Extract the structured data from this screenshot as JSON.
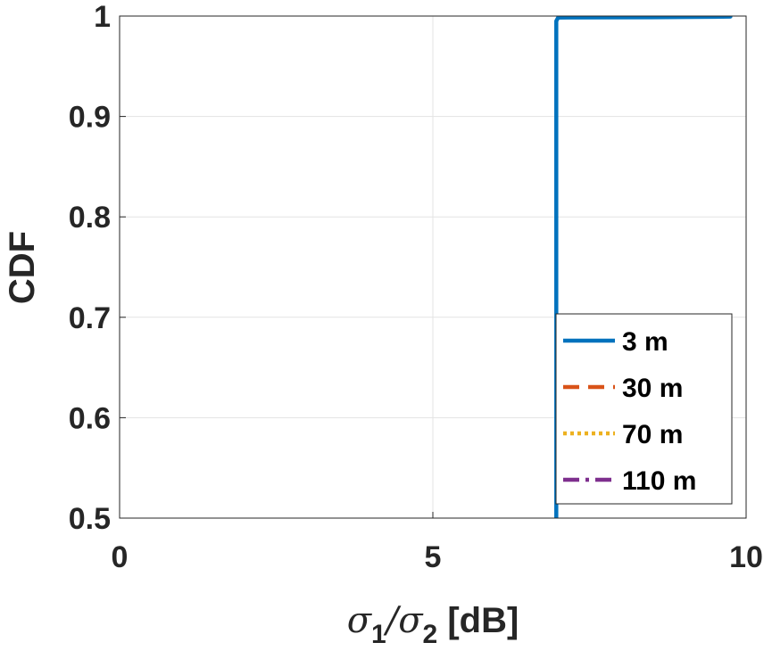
{
  "chart_data": {
    "type": "line",
    "title": "",
    "xlabel": {
      "sym1": "σ",
      "sub1": "1",
      "slash": "/",
      "sym2": "σ",
      "sub2": "2",
      "unit": " [dB]"
    },
    "ylabel": "CDF",
    "xlim": [
      0,
      10
    ],
    "ylim": [
      0.5,
      1
    ],
    "xticks": [
      0,
      5,
      10
    ],
    "yticks": [
      0.5,
      0.6,
      0.7,
      0.8,
      0.9,
      1
    ],
    "xtick_labels": [
      "0",
      "5",
      "10"
    ],
    "ytick_labels": [
      "0.5",
      "0.6",
      "0.7",
      "0.8",
      "0.9",
      "1"
    ],
    "grid": true,
    "legend_position": "bottom-right",
    "series": [
      {
        "name": "3 m",
        "color": "#0072BD",
        "style": "solid",
        "x": [
          6.97,
          6.97,
          6.97,
          7.0,
          8.5,
          9.5,
          9.75
        ],
        "y": [
          0.5,
          0.8,
          0.995,
          0.9985,
          0.9988,
          0.9992,
          0.9995
        ]
      },
      {
        "name": "30 m",
        "color": "#D95319",
        "style": "dashed",
        "x": [],
        "y": []
      },
      {
        "name": "70 m",
        "color": "#EDB120",
        "style": "dotted",
        "x": [],
        "y": []
      },
      {
        "name": "110 m",
        "color": "#7E2F8E",
        "style": "dashdot",
        "x": [],
        "y": []
      }
    ]
  }
}
